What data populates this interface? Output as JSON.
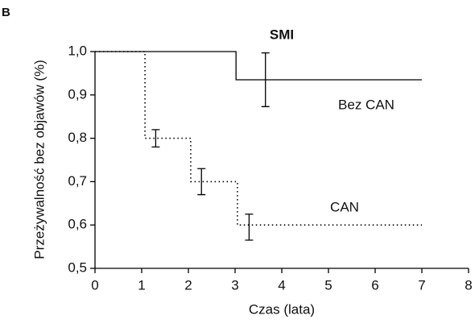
{
  "chart_data": {
    "type": "step",
    "panel_label": "B",
    "title": "SMI",
    "x_label": "Czas (lata)",
    "y_label": "Przeżywalność bez objawów (%)",
    "xlim": [
      0,
      8
    ],
    "xticks": [
      0,
      1,
      2,
      3,
      4,
      5,
      6,
      7,
      8
    ],
    "ylim": [
      0.5,
      1.0
    ],
    "yticks": [
      {
        "value": 0.5,
        "label": "0,5"
      },
      {
        "value": 0.6,
        "label": "0,6"
      },
      {
        "value": 0.7,
        "label": "0,7"
      },
      {
        "value": 0.8,
        "label": "0,8"
      },
      {
        "value": 0.9,
        "label": "0,9"
      },
      {
        "value": 1.0,
        "label": "1,0"
      }
    ],
    "grid": false,
    "series": [
      {
        "name": "Bez CAN",
        "color": "#000000",
        "dash": "solid",
        "x": [
          0,
          3.02,
          7
        ],
        "values": [
          1.0,
          0.935,
          0.935
        ],
        "error_bars": [
          {
            "x": 3.65,
            "value": 0.935,
            "error": 0.062
          }
        ]
      },
      {
        "name": "CAN",
        "color": "#000000",
        "dash": "dotted",
        "x": [
          0,
          1.07,
          2.05,
          3.05,
          7
        ],
        "values": [
          1.0,
          0.8,
          0.7,
          0.6,
          0.6
        ],
        "error_bars": [
          {
            "x": 1.3,
            "value": 0.8,
            "error": 0.02
          },
          {
            "x": 2.28,
            "value": 0.7,
            "error": 0.03
          },
          {
            "x": 3.3,
            "value": 0.595,
            "error": 0.03
          }
        ]
      }
    ]
  }
}
